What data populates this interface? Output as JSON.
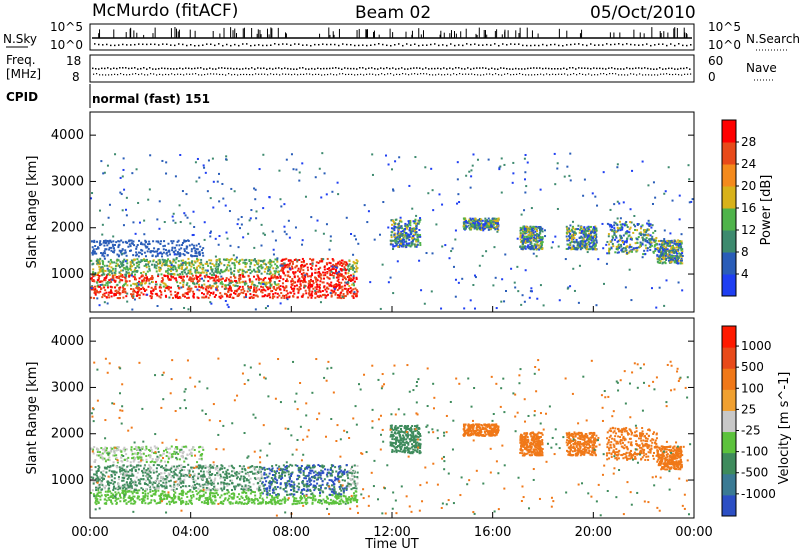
{
  "header": {
    "station": "McMurdo (fitACF)",
    "beam": "Beam 02",
    "date": "05/Oct/2010"
  },
  "noise_panel": {
    "left_label": "N.Sky",
    "right_label": "N.Search",
    "left_ticks": [
      "10^5",
      "10^0"
    ],
    "right_ticks": [
      "10^5",
      "10^0"
    ]
  },
  "freq_panel": {
    "left_label_top": "Freq.",
    "left_label_bottom": "[MHz]",
    "right_label": "Nave",
    "left_ticks": [
      "18",
      "8"
    ],
    "right_ticks": [
      "60",
      "0"
    ]
  },
  "cpid": {
    "label": "CPID",
    "value": "normal (fast) 151"
  },
  "chart_data": [
    {
      "type": "heatmap",
      "name": "power",
      "ylabel": "Slant Range [km]",
      "y_ticks": [
        "1000",
        "2000",
        "3000",
        "4000"
      ],
      "ylim": [
        180,
        4500
      ],
      "colorbar_label": "Power [dB]",
      "colorbar_ticks": [
        "4",
        "8",
        "12",
        "16",
        "20",
        "24",
        "28"
      ],
      "colorbar_colors": [
        "#1f3ff2",
        "#2a5db8",
        "#3d8a6e",
        "#4fb34a",
        "#d8b21a",
        "#f48a1c",
        "#e84a1a",
        "#ff0000"
      ]
    },
    {
      "type": "heatmap",
      "name": "velocity",
      "ylabel": "Slant Range [km]",
      "y_ticks": [
        "1000",
        "2000",
        "3000",
        "4000"
      ],
      "ylim": [
        180,
        4500
      ],
      "colorbar_label": "Velocity [m s^-1]",
      "colorbar_ticks": [
        "1000",
        "500",
        "100",
        "25",
        "-25",
        "-100",
        "-500",
        "-1000"
      ],
      "colorbar_colors": [
        "#2c4fc4",
        "#3a7a94",
        "#3e8b5c",
        "#5cc23c",
        "#c8c8c8",
        "#f0a030",
        "#f07818",
        "#e84a1a",
        "#ff1a00"
      ]
    }
  ],
  "x_axis": {
    "label": "Time UT",
    "ticks": [
      "00:00",
      "04:00",
      "08:00",
      "12:00",
      "16:00",
      "20:00",
      "00:00"
    ]
  }
}
